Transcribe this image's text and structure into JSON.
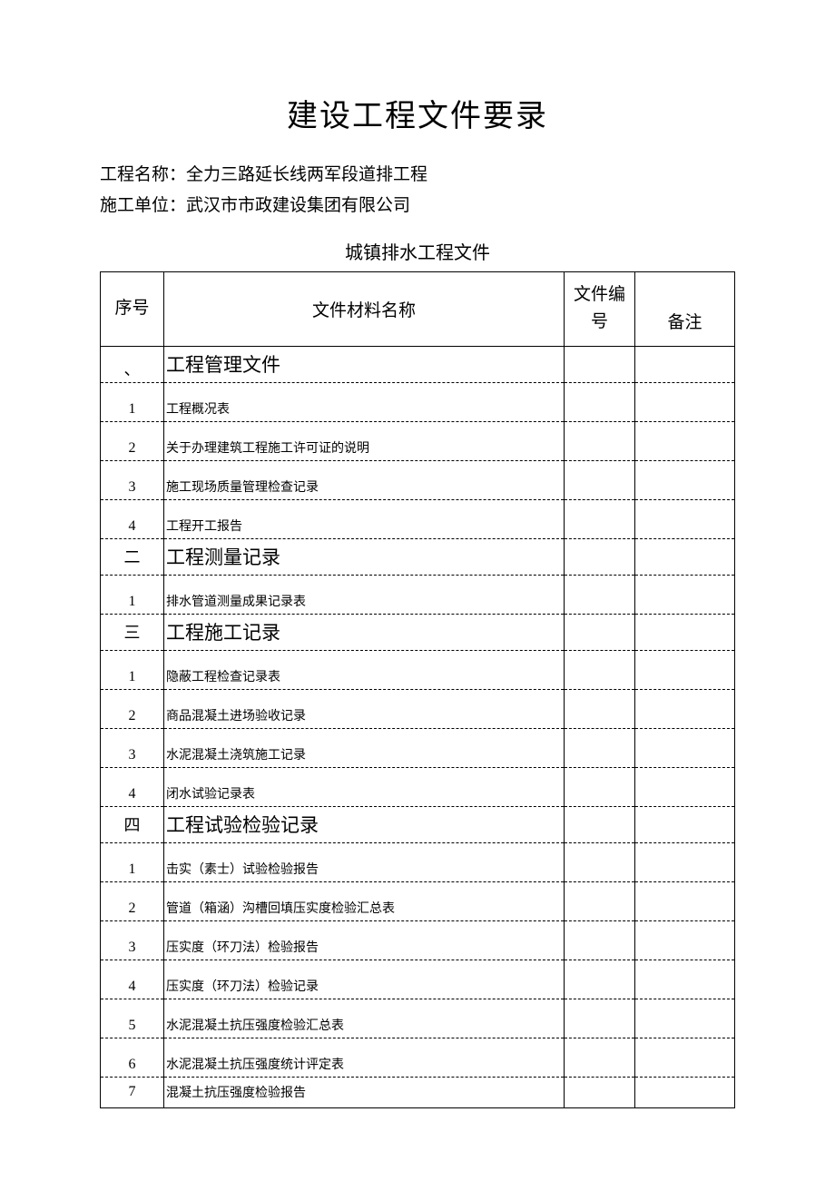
{
  "doc": {
    "title": "建设工程文件要录",
    "project_label": "工程名称：",
    "project_name": "全力三路延长线两军段道排工程",
    "unit_label": "施工单位：",
    "unit_name": "武汉市市政建设集团有限公司",
    "sub_title": "城镇排水工程文件"
  },
  "headers": {
    "seq": "序号",
    "name": "文件材料名称",
    "fileno": "文件编号",
    "remark": "备注"
  },
  "rows": [
    {
      "type": "section",
      "seq": "、",
      "name": "工程管理文件",
      "first": true
    },
    {
      "type": "item",
      "seq": "1",
      "name": "工程概况表"
    },
    {
      "type": "item",
      "seq": "2",
      "name": "关于办理建筑工程施工许可证的说明"
    },
    {
      "type": "item",
      "seq": "3",
      "name": "施工现场质量管理检查记录"
    },
    {
      "type": "item",
      "seq": "4",
      "name": "工程开工报告"
    },
    {
      "type": "section",
      "seq": "二",
      "name": "工程测量记录"
    },
    {
      "type": "item",
      "seq": "1",
      "name": "排水管道测量成果记录表"
    },
    {
      "type": "section",
      "seq": "三",
      "name": "工程施工记录"
    },
    {
      "type": "item",
      "seq": "1",
      "name": "隐蔽工程检查记录表"
    },
    {
      "type": "item",
      "seq": "2",
      "name": "商品混凝土进场验收记录"
    },
    {
      "type": "item",
      "seq": "3",
      "name": "水泥混凝土浇筑施工记录"
    },
    {
      "type": "item",
      "seq": "4",
      "name": "闭水试验记录表"
    },
    {
      "type": "section",
      "seq": "四",
      "name": "工程试验检验记录"
    },
    {
      "type": "item",
      "seq": "1",
      "name": "击实（素士）试验检验报告"
    },
    {
      "type": "item",
      "seq": "2",
      "name": "管道（箱涵）沟槽回填压实度检验汇总表"
    },
    {
      "type": "item",
      "seq": "3",
      "name": "压实度（环刀法）检验报告"
    },
    {
      "type": "item",
      "seq": "4",
      "name": "压实度（环刀法）检验记录"
    },
    {
      "type": "item",
      "seq": "5",
      "name": "水泥混凝土抗压强度检验汇总表"
    },
    {
      "type": "item",
      "seq": "6",
      "name": "水泥混凝土抗压强度统计评定表"
    },
    {
      "type": "item",
      "seq": "7",
      "name": "混凝土抗压强度检验报告",
      "last": true
    }
  ],
  "style": {
    "page_bg": "#ffffff",
    "text_color": "#000000",
    "border_color": "#000000",
    "title_fontsize": 34,
    "info_fontsize": 19,
    "subtitle_fontsize": 20,
    "header_fontsize": 19,
    "section_name_fontsize": 21,
    "item_name_fontsize": 14,
    "seq_fontsize": 16,
    "col_seq_width": 70,
    "col_fileno_width": 78,
    "col_remark_width": 110,
    "header_row_height": 82,
    "section_row_height": 40,
    "item_row_height": 43
  }
}
